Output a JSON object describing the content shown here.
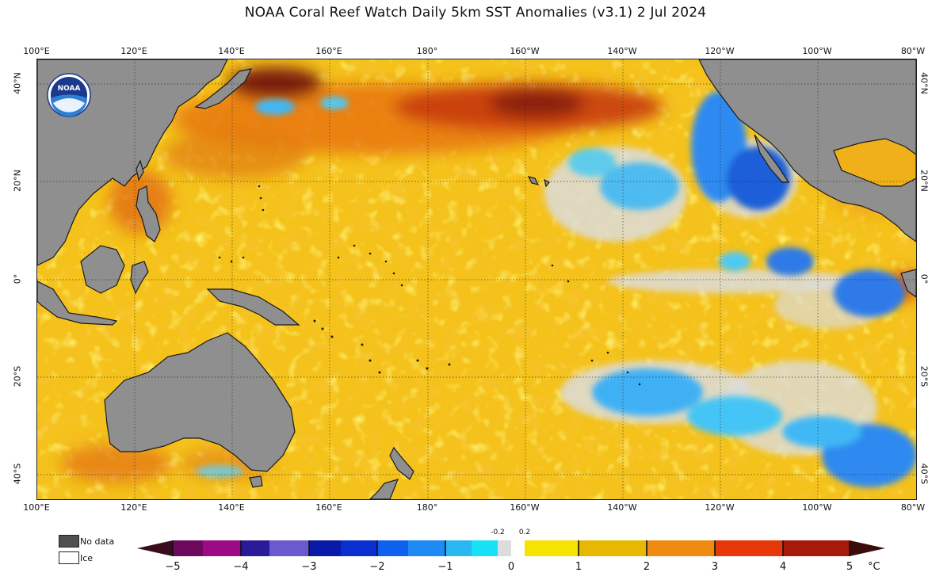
{
  "title": "NOAA Coral Reef Watch Daily 5km SST Anomalies  (v3.1)    2 Jul 2024",
  "logo_text": "NOAA",
  "lon_labels": [
    "100°E",
    "120°E",
    "140°E",
    "160°E",
    "180°",
    "160°W",
    "140°W",
    "120°W",
    "100°W",
    "80°W"
  ],
  "lat_labels": [
    "40°N",
    "20°N",
    "0°",
    "20°S",
    "40°S"
  ],
  "legend": {
    "no_data": "No data",
    "ice": "Ice"
  },
  "colorbar": {
    "ticks": [
      "−5",
      "−4",
      "−3",
      "−2",
      "−1",
      "0",
      "1",
      "2",
      "3",
      "4",
      "5"
    ],
    "small_ticks": [
      "-0.2",
      "0.2"
    ],
    "unit": "°C"
  },
  "colors": {
    "land": "#8f8f8f",
    "near_zero": "#dcdcdc",
    "warm": "#f5c400",
    "hot": "#d84b10",
    "cool": "#1e7cf0"
  }
}
